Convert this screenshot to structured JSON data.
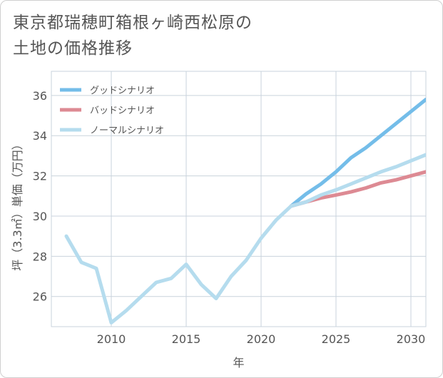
{
  "title": {
    "line1": "東京都瑞穂町箱根ヶ崎西松原の",
    "line2": "土地の価格推移"
  },
  "chart_data": {
    "type": "line",
    "title": "東京都瑞穂町箱根ヶ崎西松原の土地の価格推移",
    "xlabel": "年",
    "ylabel": "坪（3.3㎡）単価（万円）",
    "xlim": [
      2006,
      2031
    ],
    "ylim": [
      24.5,
      37.2
    ],
    "xticks": [
      2010,
      2015,
      2020,
      2025,
      2030
    ],
    "yticks": [
      26,
      28,
      30,
      32,
      34,
      36
    ],
    "grid": true,
    "legend_position": "top-left",
    "series": [
      {
        "name": "グッドシナリオ",
        "color": "#74bde9",
        "x": [
          2022,
          2023,
          2024,
          2025,
          2026,
          2027,
          2028,
          2029,
          2030,
          2031
        ],
        "values": [
          30.5,
          31.1,
          31.6,
          32.2,
          32.9,
          33.4,
          34.0,
          34.6,
          35.2,
          35.8
        ]
      },
      {
        "name": "バッドシナリオ",
        "color": "#dd8a93",
        "x": [
          2022,
          2023,
          2024,
          2025,
          2026,
          2027,
          2028,
          2029,
          2030,
          2031
        ],
        "values": [
          30.5,
          30.7,
          30.9,
          31.05,
          31.2,
          31.4,
          31.65,
          31.8,
          32.0,
          32.2
        ]
      },
      {
        "name": "ノーマルシナリオ",
        "color": "#b5dcee",
        "x": [
          2007,
          2008,
          2009,
          2010,
          2011,
          2012,
          2013,
          2014,
          2015,
          2016,
          2017,
          2018,
          2019,
          2020,
          2021,
          2022,
          2023,
          2024,
          2025,
          2026,
          2027,
          2028,
          2029,
          2030,
          2031
        ],
        "values": [
          29.0,
          27.7,
          27.4,
          24.7,
          25.3,
          26.0,
          26.7,
          26.9,
          27.6,
          26.6,
          25.9,
          27.0,
          27.8,
          28.9,
          29.8,
          30.5,
          30.7,
          31.05,
          31.3,
          31.6,
          31.9,
          32.2,
          32.45,
          32.75,
          33.05
        ]
      }
    ]
  }
}
